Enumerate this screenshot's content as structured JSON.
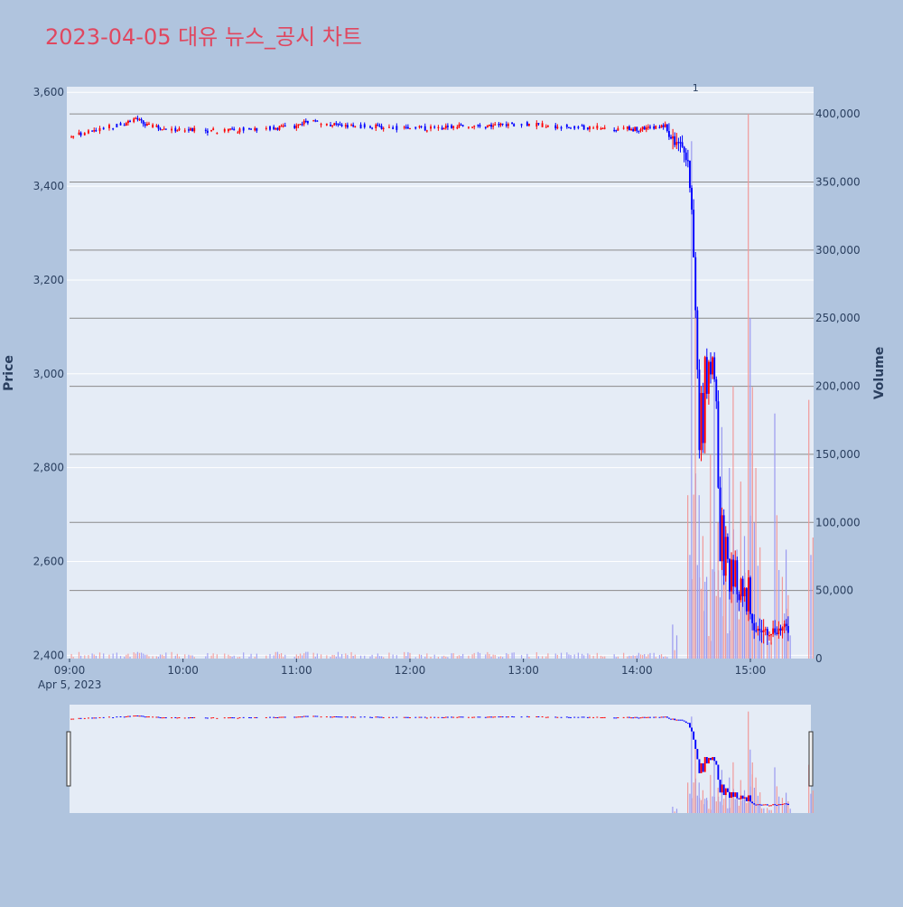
{
  "chart_data": {
    "type": "candlestick",
    "title": "2023-04-05 대유 뉴스_공시 차트",
    "date_label": "Apr 5, 2023",
    "ylabel_left": "Price",
    "ylabel_right": "Volume",
    "price_axis": {
      "range": [
        2393,
        3612
      ],
      "ticks": [
        2400,
        2600,
        2800,
        3000,
        3200,
        3400,
        3600
      ],
      "tick_labels": [
        "2,400",
        "2,600",
        "2,800",
        "3,000",
        "3,200",
        "3,400",
        "3,600"
      ]
    },
    "volume_axis": {
      "range": [
        0,
        420000
      ],
      "ticks": [
        0,
        50000,
        100000,
        150000,
        200000,
        250000,
        300000,
        350000,
        400000
      ],
      "tick_labels": [
        "0",
        "50,000",
        "100,000",
        "150,000",
        "200,000",
        "250,000",
        "300,000",
        "350,000",
        "400,000"
      ]
    },
    "x_axis": {
      "range": [
        "09:00",
        "15:32"
      ],
      "ticks": [
        "09:00",
        "10:00",
        "11:00",
        "12:00",
        "13:00",
        "14:00",
        "15:00"
      ]
    },
    "annotation": {
      "text": "1",
      "time": "14:31"
    },
    "grid": true,
    "up_color": "#ff0000",
    "down_color": "#0000ff",
    "rangeslider": true,
    "keypoints": [
      [
        "09:00",
        3505
      ],
      [
        "09:10",
        3515
      ],
      [
        "09:20",
        3525
      ],
      [
        "09:30",
        3535
      ],
      [
        "09:35",
        3545
      ],
      [
        "09:40",
        3530
      ],
      [
        "09:50",
        3522
      ],
      [
        "10:00",
        3520
      ],
      [
        "10:20",
        3518
      ],
      [
        "10:40",
        3522
      ],
      [
        "11:00",
        3528
      ],
      [
        "11:05",
        3540
      ],
      [
        "11:20",
        3530
      ],
      [
        "11:40",
        3527
      ],
      [
        "12:00",
        3522
      ],
      [
        "12:30",
        3528
      ],
      [
        "13:00",
        3532
      ],
      [
        "13:30",
        3525
      ],
      [
        "14:00",
        3522
      ],
      [
        "14:15",
        3528
      ],
      [
        "14:17",
        3505
      ],
      [
        "14:22",
        3492
      ],
      [
        "14:25",
        3480
      ],
      [
        "14:27",
        3450
      ],
      [
        "14:28",
        3395
      ],
      [
        "14:29",
        3340
      ],
      [
        "14:30",
        3250
      ],
      [
        "14:31",
        3140
      ],
      [
        "14:32",
        3000
      ],
      [
        "14:33",
        2830
      ],
      [
        "14:34",
        2960
      ],
      [
        "14:35",
        2860
      ],
      [
        "14:36",
        3040
      ],
      [
        "14:37",
        2960
      ],
      [
        "14:38",
        3020
      ],
      [
        "14:39",
        2990
      ],
      [
        "14:40",
        3040
      ],
      [
        "14:42",
        2950
      ],
      [
        "14:43",
        2760
      ],
      [
        "14:44",
        2600
      ],
      [
        "14:45",
        2690
      ],
      [
        "14:46",
        2560
      ],
      [
        "14:47",
        2660
      ],
      [
        "14:48",
        2600
      ],
      [
        "14:49",
        2540
      ],
      [
        "14:50",
        2610
      ],
      [
        "14:51",
        2540
      ],
      [
        "14:52",
        2600
      ],
      [
        "14:53",
        2540
      ],
      [
        "14:54",
        2520
      ],
      [
        "14:55",
        2570
      ],
      [
        "14:56",
        2520
      ],
      [
        "14:57",
        2540
      ],
      [
        "14:58",
        2500
      ],
      [
        "14:59",
        2560
      ],
      [
        "15:00",
        2480
      ],
      [
        "15:01",
        2460
      ],
      [
        "15:03",
        2455
      ],
      [
        "15:05",
        2452
      ],
      [
        "15:10",
        2452
      ],
      [
        "15:15",
        2455
      ],
      [
        "15:19",
        2458
      ],
      [
        "15:20",
        2452
      ]
    ],
    "volume_points": [
      [
        "14:20",
        25000
      ],
      [
        "14:28",
        120000
      ],
      [
        "14:30",
        380000
      ],
      [
        "14:32",
        260000
      ],
      [
        "14:34",
        120000
      ],
      [
        "14:36",
        90000
      ],
      [
        "14:38",
        60000
      ],
      [
        "14:40",
        150000
      ],
      [
        "14:42",
        220000
      ],
      [
        "14:44",
        100000
      ],
      [
        "14:46",
        170000
      ],
      [
        "14:48",
        80000
      ],
      [
        "14:50",
        140000
      ],
      [
        "14:52",
        200000
      ],
      [
        "14:54",
        80000
      ],
      [
        "14:56",
        130000
      ],
      [
        "14:58",
        90000
      ],
      [
        "15:00",
        400000
      ],
      [
        "15:01",
        250000
      ],
      [
        "15:04",
        140000
      ],
      [
        "15:06",
        30000
      ],
      [
        "15:10",
        20000
      ],
      [
        "15:14",
        180000
      ],
      [
        "15:18",
        60000
      ],
      [
        "15:20",
        80000
      ],
      [
        "15:32",
        190000
      ]
    ]
  }
}
